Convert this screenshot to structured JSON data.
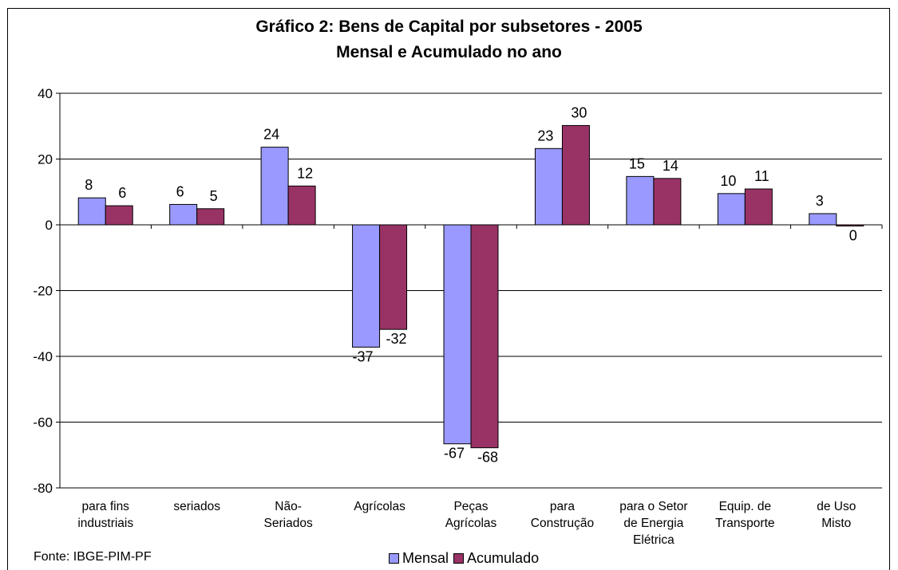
{
  "chart_data": {
    "type": "bar",
    "title": "Gráfico 2: Bens de Capital por subsetores - 2005",
    "subtitle": "Mensal e Acumulado no ano",
    "categories": [
      [
        "para fins",
        "industriais"
      ],
      [
        "seriados"
      ],
      [
        "Não-",
        "Seriados"
      ],
      [
        "Agrícolas"
      ],
      [
        "Peças",
        "Agrícolas"
      ],
      [
        "para",
        "Construção"
      ],
      [
        "para o Setor",
        "de Energia",
        "Elétrica"
      ],
      [
        "Equip. de",
        "Transporte"
      ],
      [
        "de Uso",
        "Misto"
      ]
    ],
    "series": [
      {
        "name": "Mensal",
        "color": "#9999FF",
        "values": [
          8.2,
          6.2,
          23.6,
          -37.2,
          -66.6,
          23.2,
          14.7,
          9.5,
          3.4
        ],
        "labels": [
          "8",
          "6",
          "24",
          "-37",
          "-67",
          "23",
          "15",
          "10",
          "3"
        ]
      },
      {
        "name": "Acumulado",
        "color": "#993366",
        "values": [
          5.8,
          4.9,
          11.8,
          -31.8,
          -67.8,
          30.2,
          14.1,
          10.9,
          -0.3
        ],
        "labels": [
          "6",
          "5",
          "12",
          "-32",
          "-68",
          "30",
          "14",
          "11",
          "0"
        ]
      }
    ],
    "ylim": [
      -80,
      40
    ],
    "yticks": [
      40,
      20,
      0,
      -20,
      -40,
      -60,
      -80
    ],
    "grid": true,
    "legend_position": "bottom"
  },
  "footer": {
    "source": "Fonte: IBGE-PIM-PF"
  }
}
